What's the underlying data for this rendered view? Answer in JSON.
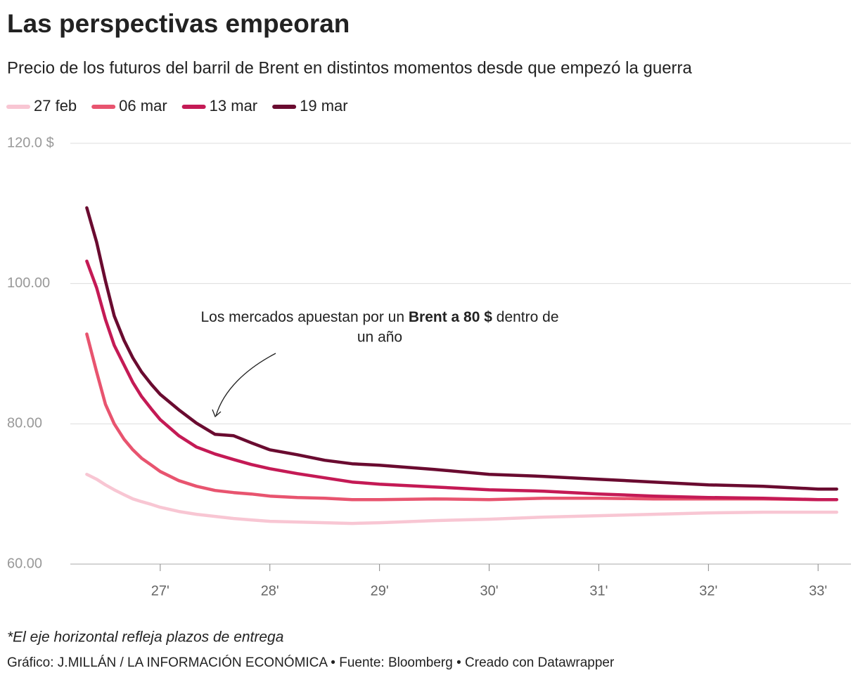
{
  "chart_data": {
    "type": "line",
    "title": "Las perspectivas empeoran",
    "subtitle": "Precio de los futuros del barril de Brent en distintos momentos desde que empezó la guerra",
    "x": [
      26.33,
      26.42,
      26.5,
      26.58,
      26.67,
      26.75,
      26.83,
      26.92,
      27.0,
      27.17,
      27.33,
      27.5,
      27.67,
      27.83,
      28.0,
      28.25,
      28.5,
      28.75,
      29.0,
      29.5,
      30.0,
      30.5,
      31.0,
      31.5,
      32.0,
      32.5,
      33.0,
      33.17
    ],
    "series": [
      {
        "name": "27 feb",
        "color": "#f8c6d3",
        "values": [
          72.8,
          72.1,
          71.3,
          70.6,
          69.9,
          69.3,
          68.9,
          68.5,
          68.1,
          67.5,
          67.1,
          66.8,
          66.5,
          66.3,
          66.1,
          66.0,
          65.9,
          65.8,
          65.9,
          66.2,
          66.4,
          66.7,
          66.9,
          67.1,
          67.3,
          67.4,
          67.4,
          67.4
        ]
      },
      {
        "name": "06 mar",
        "color": "#e8546f",
        "values": [
          92.8,
          87.4,
          82.8,
          80.0,
          77.8,
          76.3,
          75.1,
          74.1,
          73.2,
          71.9,
          71.1,
          70.5,
          70.2,
          70.0,
          69.7,
          69.5,
          69.4,
          69.2,
          69.2,
          69.3,
          69.2,
          69.4,
          69.4,
          69.3,
          69.3,
          69.3,
          69.2,
          69.2
        ]
      },
      {
        "name": "13 mar",
        "color": "#c41a55",
        "values": [
          103.2,
          99.4,
          94.9,
          91.2,
          88.4,
          85.9,
          83.9,
          82.1,
          80.6,
          78.3,
          76.7,
          75.7,
          74.9,
          74.2,
          73.6,
          72.9,
          72.3,
          71.7,
          71.4,
          71.0,
          70.6,
          70.4,
          70.0,
          69.7,
          69.5,
          69.4,
          69.2,
          69.2
        ]
      },
      {
        "name": "19 mar",
        "color": "#6a0b30",
        "values": [
          110.8,
          105.9,
          100.4,
          95.4,
          91.9,
          89.4,
          87.4,
          85.6,
          84.2,
          82.0,
          80.1,
          78.5,
          78.3,
          77.3,
          76.3,
          75.6,
          74.8,
          74.3,
          74.1,
          73.5,
          72.8,
          72.5,
          72.1,
          71.7,
          71.3,
          71.1,
          70.7,
          70.7
        ]
      }
    ],
    "xlim": [
      26.18,
      33.3
    ],
    "xticks": [
      {
        "value": 27,
        "label": "27'"
      },
      {
        "value": 28,
        "label": "28'"
      },
      {
        "value": 29,
        "label": "29'"
      },
      {
        "value": 30,
        "label": "30'"
      },
      {
        "value": 31,
        "label": "31'"
      },
      {
        "value": 32,
        "label": "32'"
      },
      {
        "value": 33,
        "label": "33'"
      }
    ],
    "ylim": [
      60,
      120
    ],
    "yticks": [
      {
        "value": 60,
        "label": "60.00"
      },
      {
        "value": 80,
        "label": "80.00"
      },
      {
        "value": 100,
        "label": "100.00"
      },
      {
        "value": 120,
        "label": "120.0 $"
      }
    ],
    "grid": true,
    "annotation": [
      "Los mercados apuestan por un",
      "Brent a 80 $",
      "dentro de",
      "un año"
    ],
    "note": "*El eje horizontal refleja plazos de entrega",
    "source": "Gráfico: J.MILLÁN / LA INFORMACIÓN ECONÓMICA • Fuente: Bloomberg • Creado con Datawrapper"
  }
}
